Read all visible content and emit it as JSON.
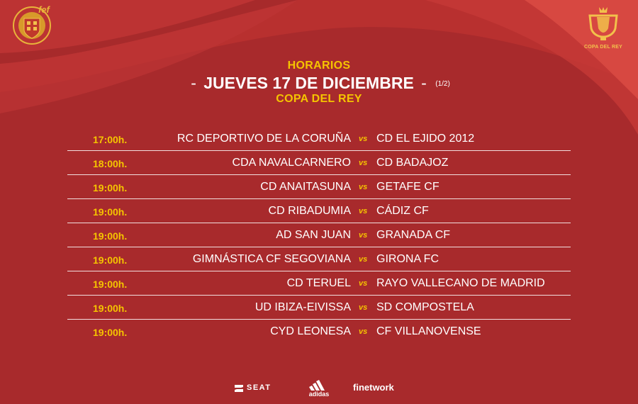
{
  "colors": {
    "background": "#a82a2c",
    "accent": "#f5c400",
    "text": "#ffffff"
  },
  "header": {
    "subtitle": "HORARIOS",
    "dash_left": "-",
    "date": "JUEVES 17 DE DICIEMBRE",
    "dash_right": "-",
    "page": "(1/2)",
    "competition": "COPA DEL REY"
  },
  "logos": {
    "federation": "rfef-crest-icon",
    "cup": "copa-del-rey-trophy-icon",
    "cup_text": "COPA DEL REY"
  },
  "matches": [
    {
      "time": "17:00h.",
      "home": "RC DEPORTIVO DE LA CORUÑA",
      "vs": "vs",
      "away": "CD EL EJIDO 2012"
    },
    {
      "time": "18:00h.",
      "home": "CDA NAVALCARNERO",
      "vs": "vs",
      "away": "CD BADAJOZ"
    },
    {
      "time": "19:00h.",
      "home": "CD ANAITASUNA",
      "vs": "vs",
      "away": "GETAFE CF"
    },
    {
      "time": "19:00h.",
      "home": "CD RIBADUMIA",
      "vs": "vs",
      "away": "CÁDIZ CF"
    },
    {
      "time": "19:00h.",
      "home": "AD SAN JUAN",
      "vs": "vs",
      "away": "GRANADA CF"
    },
    {
      "time": "19:00h.",
      "home": "GIMNÁSTICA CF SEGOVIANA",
      "vs": "vs",
      "away": "GIRONA FC"
    },
    {
      "time": "19:00h.",
      "home": "CD TERUEL",
      "vs": "vs",
      "away": "RAYO VALLECANO DE MADRID"
    },
    {
      "time": "19:00h.",
      "home": "UD IBIZA-EIVISSA",
      "vs": "vs",
      "away": "SD COMPOSTELA"
    },
    {
      "time": "19:00h.",
      "home": "CYD LEONESA",
      "vs": "vs",
      "away": "CF VILLANOVENSE"
    }
  ],
  "sponsors": {
    "seat": "SEAT",
    "adidas": "adidas",
    "finetwork": "finetwork"
  }
}
